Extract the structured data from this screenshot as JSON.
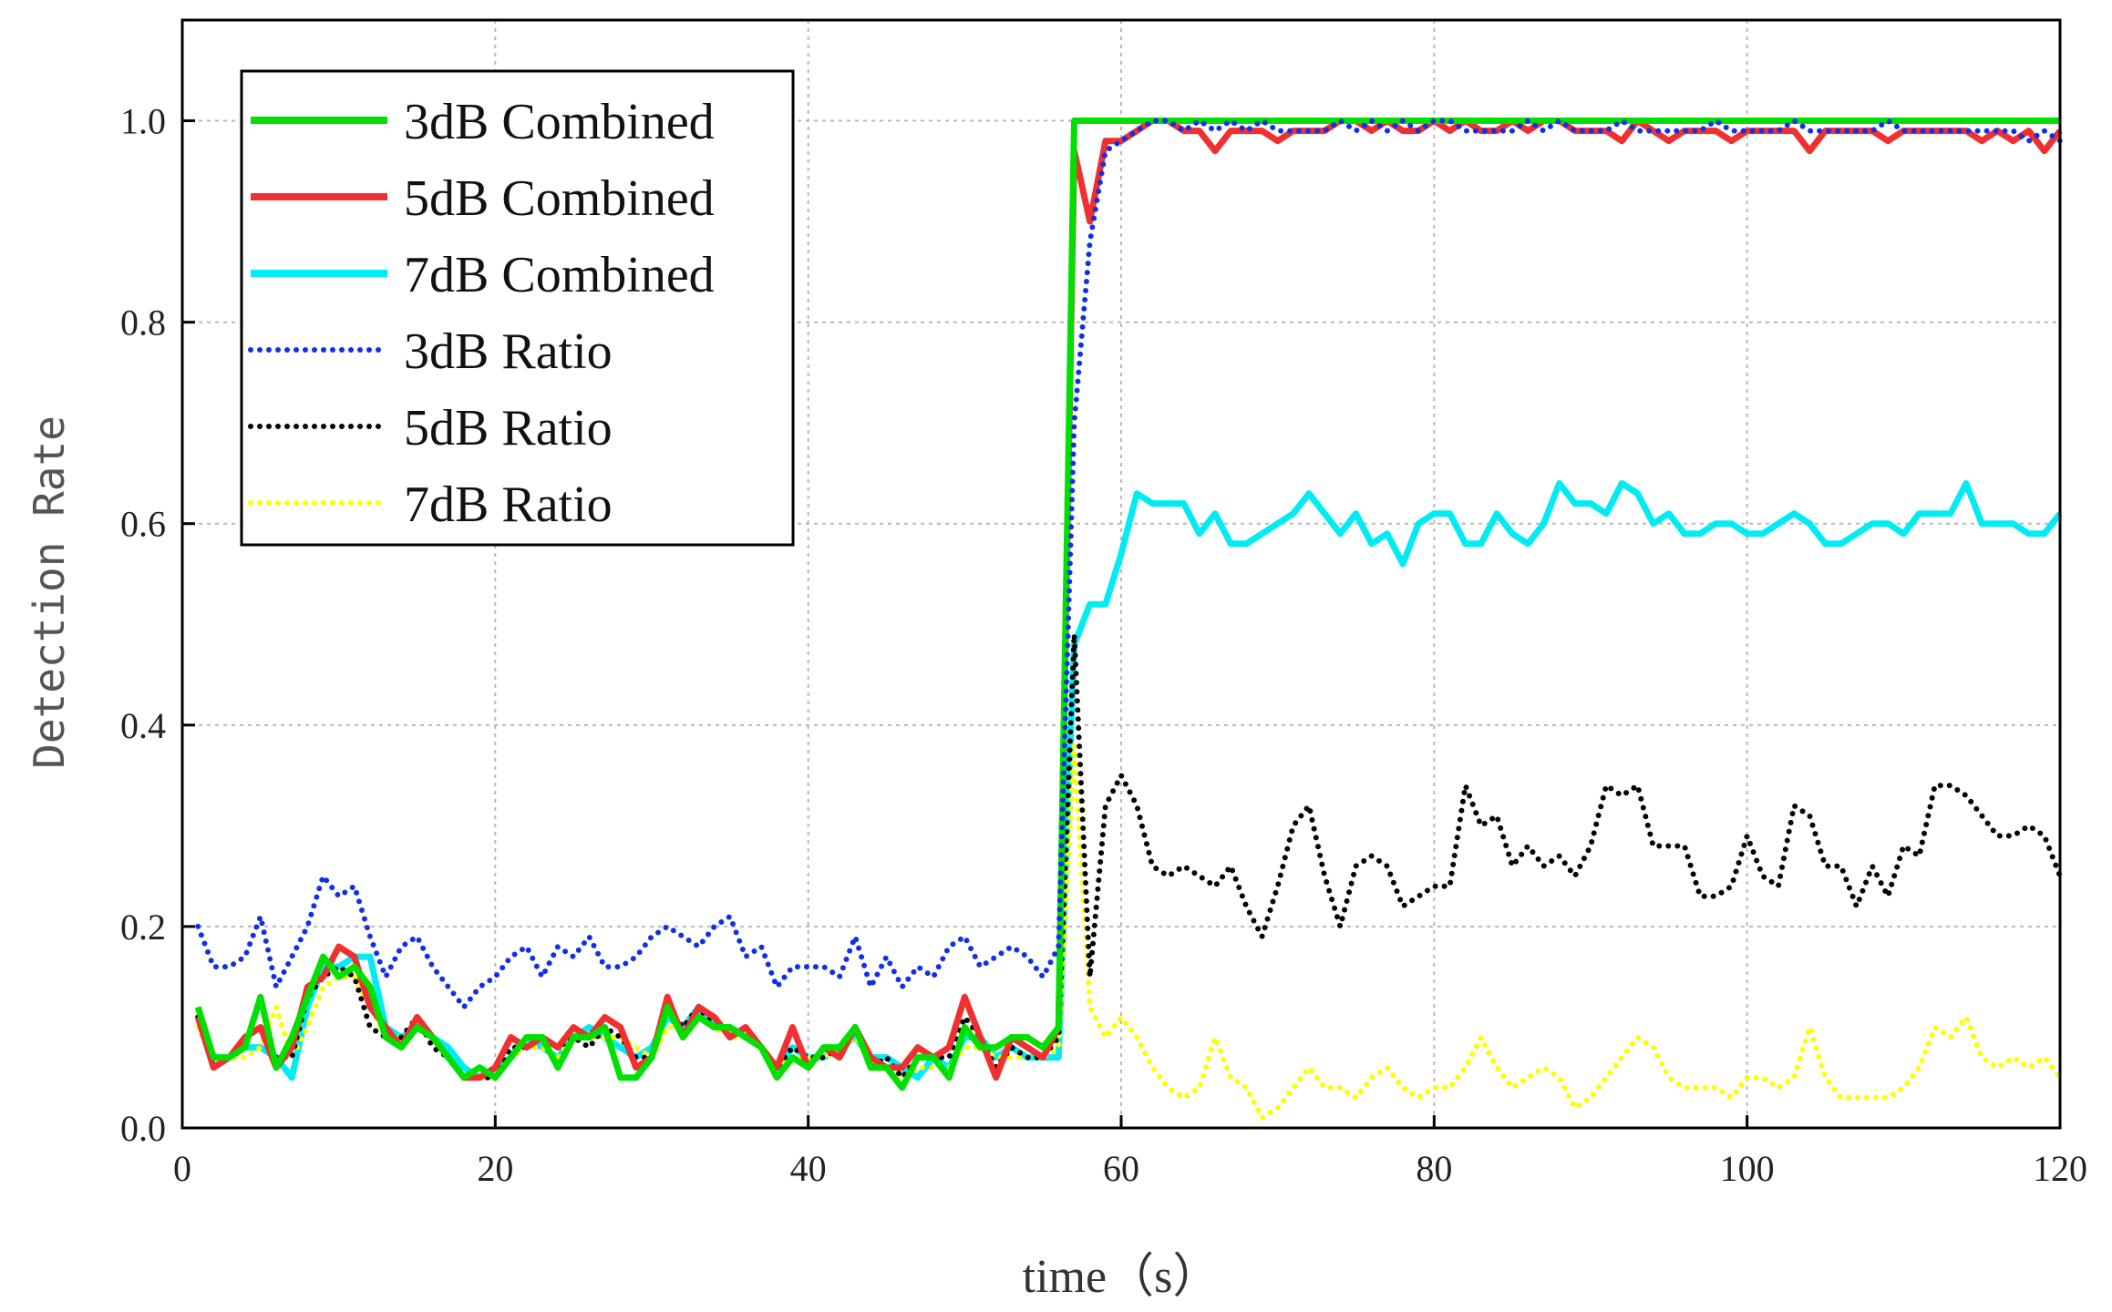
{
  "chart_data": {
    "type": "line",
    "title": "",
    "xlabel": "time（s）",
    "ylabel": "Detection Rate",
    "xlim": [
      0,
      120
    ],
    "ylim": [
      0,
      1.1
    ],
    "xticks": [
      0,
      20,
      40,
      60,
      80,
      100,
      120
    ],
    "yticks": [
      0.0,
      0.2,
      0.4,
      0.6,
      0.8,
      1.0
    ],
    "xtick_labels": [
      "0",
      "20",
      "40",
      "60",
      "80",
      "100",
      "120"
    ],
    "ytick_labels": [
      "0.0",
      "0.2",
      "0.4",
      "0.6",
      "0.8",
      "1.0"
    ],
    "grid": true,
    "legend_position": "top-left",
    "x": [
      1,
      2,
      3,
      4,
      5,
      6,
      7,
      8,
      9,
      10,
      11,
      12,
      13,
      14,
      15,
      16,
      17,
      18,
      19,
      20,
      21,
      22,
      23,
      24,
      25,
      26,
      27,
      28,
      29,
      30,
      31,
      32,
      33,
      34,
      35,
      36,
      37,
      38,
      39,
      40,
      41,
      42,
      43,
      44,
      45,
      46,
      47,
      48,
      49,
      50,
      51,
      52,
      53,
      54,
      55,
      56,
      57,
      58,
      59,
      60,
      61,
      62,
      63,
      64,
      65,
      66,
      67,
      68,
      69,
      70,
      71,
      72,
      73,
      74,
      75,
      76,
      77,
      78,
      79,
      80,
      81,
      82,
      83,
      84,
      85,
      86,
      87,
      88,
      89,
      90,
      91,
      92,
      93,
      94,
      95,
      96,
      97,
      98,
      99,
      100,
      101,
      102,
      103,
      104,
      105,
      106,
      107,
      108,
      109,
      110,
      111,
      112,
      113,
      114,
      115,
      116,
      117,
      118,
      119,
      120
    ],
    "series": [
      {
        "name": "3dB Combined",
        "color": "#00e000",
        "style": "solid",
        "values": [
          0.12,
          0.07,
          0.07,
          0.08,
          0.13,
          0.06,
          0.09,
          0.13,
          0.17,
          0.15,
          0.16,
          0.14,
          0.09,
          0.08,
          0.1,
          0.09,
          0.07,
          0.05,
          0.06,
          0.05,
          0.07,
          0.09,
          0.09,
          0.06,
          0.09,
          0.09,
          0.1,
          0.05,
          0.05,
          0.07,
          0.12,
          0.09,
          0.11,
          0.1,
          0.1,
          0.09,
          0.08,
          0.05,
          0.07,
          0.06,
          0.08,
          0.08,
          0.1,
          0.06,
          0.06,
          0.04,
          0.07,
          0.07,
          0.05,
          0.1,
          0.08,
          0.08,
          0.09,
          0.09,
          0.08,
          0.1,
          1.0,
          1.0,
          1.0,
          1.0,
          1.0,
          1.0,
          1.0,
          1.0,
          1.0,
          1.0,
          1.0,
          1.0,
          1.0,
          1.0,
          1.0,
          1.0,
          1.0,
          1.0,
          1.0,
          1.0,
          1.0,
          1.0,
          1.0,
          1.0,
          1.0,
          1.0,
          1.0,
          1.0,
          1.0,
          1.0,
          1.0,
          1.0,
          1.0,
          1.0,
          1.0,
          1.0,
          1.0,
          1.0,
          1.0,
          1.0,
          1.0,
          1.0,
          1.0,
          1.0,
          1.0,
          1.0,
          1.0,
          1.0,
          1.0,
          1.0,
          1.0,
          1.0,
          1.0,
          1.0,
          1.0,
          1.0,
          1.0,
          1.0,
          1.0,
          1.0,
          1.0,
          1.0,
          1.0,
          1.0
        ]
      },
      {
        "name": "5dB Combined",
        "color": "#f03030",
        "style": "solid",
        "values": [
          0.11,
          0.06,
          0.07,
          0.09,
          0.1,
          0.06,
          0.08,
          0.14,
          0.15,
          0.18,
          0.17,
          0.12,
          0.1,
          0.08,
          0.11,
          0.09,
          0.07,
          0.05,
          0.05,
          0.06,
          0.09,
          0.08,
          0.09,
          0.08,
          0.1,
          0.09,
          0.11,
          0.1,
          0.06,
          0.07,
          0.13,
          0.09,
          0.12,
          0.11,
          0.09,
          0.1,
          0.08,
          0.06,
          0.1,
          0.06,
          0.08,
          0.07,
          0.1,
          0.07,
          0.06,
          0.06,
          0.08,
          0.07,
          0.08,
          0.13,
          0.09,
          0.05,
          0.09,
          0.08,
          0.07,
          0.1,
          0.97,
          0.9,
          0.98,
          0.98,
          0.99,
          1.0,
          1.0,
          0.99,
          0.99,
          0.97,
          0.99,
          0.99,
          0.99,
          0.98,
          0.99,
          0.99,
          0.99,
          1.0,
          1.0,
          0.99,
          1.0,
          0.99,
          0.99,
          1.0,
          0.99,
          1.0,
          0.99,
          0.99,
          1.0,
          0.99,
          1.0,
          1.0,
          0.99,
          0.99,
          0.99,
          0.98,
          1.0,
          0.99,
          0.98,
          0.99,
          0.99,
          0.99,
          0.98,
          0.99,
          0.99,
          0.99,
          0.99,
          0.97,
          0.99,
          0.99,
          0.99,
          0.99,
          0.98,
          0.99,
          0.99,
          0.99,
          0.99,
          0.99,
          0.98,
          0.99,
          0.98,
          0.99,
          0.97,
          0.99
        ]
      },
      {
        "name": "7dB Combined",
        "color": "#00ecf4",
        "style": "solid",
        "values": [
          0.11,
          0.07,
          0.07,
          0.08,
          0.08,
          0.07,
          0.05,
          0.12,
          0.16,
          0.16,
          0.17,
          0.17,
          0.1,
          0.09,
          0.1,
          0.09,
          0.08,
          0.06,
          0.05,
          0.06,
          0.07,
          0.09,
          0.08,
          0.07,
          0.09,
          0.1,
          0.09,
          0.08,
          0.07,
          0.08,
          0.11,
          0.1,
          0.12,
          0.1,
          0.1,
          0.09,
          0.08,
          0.06,
          0.08,
          0.07,
          0.07,
          0.08,
          0.09,
          0.07,
          0.07,
          0.06,
          0.05,
          0.07,
          0.06,
          0.09,
          0.09,
          0.07,
          0.08,
          0.07,
          0.07,
          0.07,
          0.48,
          0.52,
          0.52,
          0.57,
          0.63,
          0.62,
          0.62,
          0.62,
          0.59,
          0.61,
          0.58,
          0.58,
          0.59,
          0.6,
          0.61,
          0.63,
          0.61,
          0.59,
          0.61,
          0.58,
          0.59,
          0.56,
          0.6,
          0.61,
          0.61,
          0.58,
          0.58,
          0.61,
          0.59,
          0.58,
          0.6,
          0.64,
          0.62,
          0.62,
          0.61,
          0.64,
          0.63,
          0.6,
          0.61,
          0.59,
          0.59,
          0.6,
          0.6,
          0.59,
          0.59,
          0.6,
          0.61,
          0.6,
          0.58,
          0.58,
          0.59,
          0.6,
          0.6,
          0.59,
          0.61,
          0.61,
          0.61,
          0.64,
          0.6,
          0.6,
          0.6,
          0.59,
          0.59,
          0.61
        ]
      },
      {
        "name": "3dB Ratio",
        "color": "#1030e8",
        "style": "dotted",
        "values": [
          0.2,
          0.16,
          0.16,
          0.17,
          0.21,
          0.14,
          0.17,
          0.2,
          0.25,
          0.23,
          0.24,
          0.19,
          0.15,
          0.18,
          0.19,
          0.16,
          0.14,
          0.12,
          0.14,
          0.15,
          0.17,
          0.18,
          0.15,
          0.18,
          0.17,
          0.19,
          0.16,
          0.16,
          0.17,
          0.19,
          0.2,
          0.19,
          0.18,
          0.2,
          0.21,
          0.17,
          0.18,
          0.14,
          0.16,
          0.16,
          0.16,
          0.15,
          0.19,
          0.14,
          0.17,
          0.14,
          0.16,
          0.15,
          0.18,
          0.19,
          0.16,
          0.17,
          0.18,
          0.17,
          0.15,
          0.18,
          0.7,
          0.88,
          0.97,
          0.98,
          0.99,
          1.0,
          1.0,
          0.99,
          1.0,
          0.99,
          1.0,
          0.99,
          1.0,
          0.99,
          0.99,
          0.99,
          0.99,
          1.0,
          0.99,
          1.0,
          0.99,
          1.0,
          0.99,
          1.0,
          1.0,
          0.99,
          0.99,
          0.99,
          0.99,
          1.0,
          0.99,
          1.0,
          0.99,
          0.99,
          0.99,
          1.0,
          0.99,
          0.99,
          0.99,
          0.99,
          0.99,
          1.0,
          0.99,
          0.99,
          0.99,
          0.99,
          1.0,
          0.99,
          0.99,
          0.99,
          0.99,
          0.99,
          1.0,
          0.99,
          0.99,
          0.99,
          0.99,
          0.99,
          0.99,
          0.99,
          0.99,
          0.98,
          0.99,
          0.98
        ]
      },
      {
        "name": "5dB Ratio",
        "color": "#000000",
        "style": "dotted",
        "values": [
          0.11,
          0.07,
          0.07,
          0.09,
          0.1,
          0.07,
          0.07,
          0.13,
          0.15,
          0.16,
          0.15,
          0.1,
          0.09,
          0.09,
          0.11,
          0.08,
          0.07,
          0.05,
          0.05,
          0.05,
          0.08,
          0.08,
          0.09,
          0.08,
          0.09,
          0.08,
          0.1,
          0.09,
          0.07,
          0.07,
          0.12,
          0.1,
          0.12,
          0.1,
          0.1,
          0.09,
          0.08,
          0.06,
          0.08,
          0.07,
          0.07,
          0.08,
          0.1,
          0.06,
          0.07,
          0.05,
          0.07,
          0.07,
          0.07,
          0.11,
          0.09,
          0.06,
          0.08,
          0.07,
          0.07,
          0.09,
          0.49,
          0.15,
          0.32,
          0.35,
          0.32,
          0.26,
          0.25,
          0.26,
          0.25,
          0.24,
          0.26,
          0.22,
          0.19,
          0.24,
          0.3,
          0.32,
          0.25,
          0.2,
          0.26,
          0.27,
          0.26,
          0.22,
          0.23,
          0.24,
          0.24,
          0.34,
          0.3,
          0.31,
          0.26,
          0.28,
          0.26,
          0.27,
          0.25,
          0.28,
          0.34,
          0.33,
          0.34,
          0.28,
          0.28,
          0.28,
          0.23,
          0.23,
          0.24,
          0.29,
          0.25,
          0.24,
          0.32,
          0.31,
          0.26,
          0.26,
          0.22,
          0.26,
          0.23,
          0.28,
          0.27,
          0.34,
          0.34,
          0.33,
          0.31,
          0.29,
          0.29,
          0.3,
          0.29,
          0.25
        ]
      },
      {
        "name": "7dB Ratio",
        "color": "#ffff00",
        "style": "dotted",
        "values": [
          0.1,
          0.07,
          0.07,
          0.07,
          0.08,
          0.12,
          0.07,
          0.1,
          0.14,
          0.15,
          0.15,
          0.12,
          0.09,
          0.09,
          0.1,
          0.09,
          0.07,
          0.05,
          0.05,
          0.05,
          0.07,
          0.08,
          0.08,
          0.07,
          0.09,
          0.09,
          0.09,
          0.09,
          0.08,
          0.07,
          0.1,
          0.1,
          0.11,
          0.1,
          0.09,
          0.09,
          0.08,
          0.06,
          0.07,
          0.07,
          0.07,
          0.08,
          0.09,
          0.07,
          0.06,
          0.05,
          0.06,
          0.06,
          0.06,
          0.08,
          0.08,
          0.07,
          0.07,
          0.07,
          0.07,
          0.08,
          0.38,
          0.12,
          0.09,
          0.11,
          0.09,
          0.06,
          0.04,
          0.03,
          0.04,
          0.09,
          0.05,
          0.04,
          0.01,
          0.02,
          0.04,
          0.06,
          0.04,
          0.04,
          0.03,
          0.05,
          0.06,
          0.04,
          0.03,
          0.04,
          0.04,
          0.06,
          0.09,
          0.06,
          0.04,
          0.05,
          0.06,
          0.05,
          0.02,
          0.03,
          0.05,
          0.07,
          0.09,
          0.08,
          0.05,
          0.04,
          0.04,
          0.04,
          0.03,
          0.05,
          0.05,
          0.04,
          0.05,
          0.1,
          0.05,
          0.03,
          0.03,
          0.03,
          0.03,
          0.04,
          0.06,
          0.1,
          0.09,
          0.11,
          0.07,
          0.06,
          0.07,
          0.06,
          0.07,
          0.05
        ]
      }
    ]
  }
}
